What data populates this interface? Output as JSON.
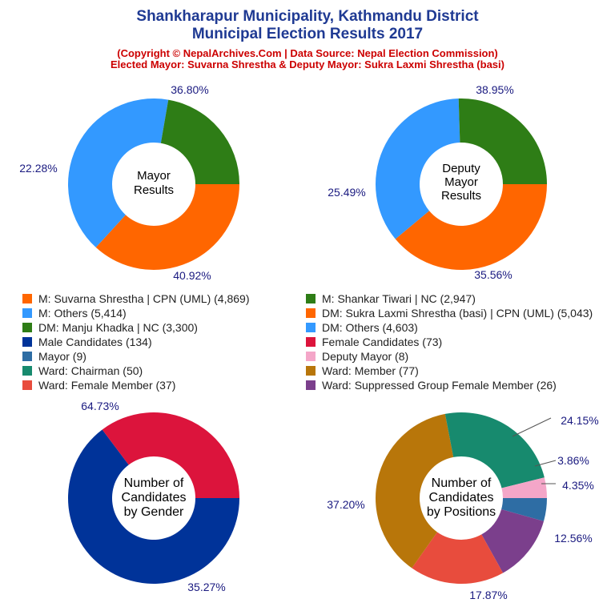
{
  "header": {
    "title_line1": "Shankharapur Municipality, Kathmandu District",
    "title_line2": "Municipal Election Results 2017",
    "subtitle_line1": "(Copyright © NepalArchives.Com | Data Source: Nepal Election Commission)",
    "subtitle_line2": "Elected Mayor: Suvarna Shrestha & Deputy Mayor: Sukra Laxmi Shrestha (basi)"
  },
  "colors": {
    "title": "#1f3a93",
    "subtitle": "#cc0000",
    "orange": "#ff6600",
    "blue": "#3399ff",
    "green": "#2e7d16",
    "navy": "#003399",
    "crimson": "#dc143c",
    "steel": "#2e6da4",
    "pink": "#f4a6c8",
    "teal": "#178a6e",
    "brown": "#b8760a",
    "red": "#e84c3d",
    "purple": "#7b3f8c"
  },
  "chart_data": [
    {
      "type": "pie",
      "center_label": [
        "Mayor",
        "Results"
      ],
      "slices": [
        {
          "label": "M: Suvarna Shrestha | CPN (UML)",
          "value": 4869,
          "percent": "36.80%",
          "color": "#ff6600"
        },
        {
          "label": "M: Others",
          "value": 5414,
          "percent": "40.92%",
          "color": "#3399ff"
        },
        {
          "label": "M: Shankar Tiwari | NC",
          "value": 2947,
          "percent": "22.28%",
          "color": "#2e7d16"
        }
      ]
    },
    {
      "type": "pie",
      "center_label": [
        "Deputy",
        "Mayor",
        "Results"
      ],
      "slices": [
        {
          "label": "DM: Sukra Laxmi Shrestha (basi) | CPN (UML)",
          "value": 5043,
          "percent": "38.95%",
          "color": "#ff6600"
        },
        {
          "label": "DM: Others",
          "value": 4603,
          "percent": "35.56%",
          "color": "#3399ff"
        },
        {
          "label": "DM: Manju Khadka | NC",
          "value": 3300,
          "percent": "25.49%",
          "color": "#2e7d16"
        }
      ]
    },
    {
      "type": "pie",
      "center_label": [
        "Number of",
        "Candidates",
        "by Gender"
      ],
      "slices": [
        {
          "label": "Male Candidates",
          "value": 134,
          "percent": "64.73%",
          "color": "#003399"
        },
        {
          "label": "Female Candidates",
          "value": 73,
          "percent": "35.27%",
          "color": "#dc143c"
        }
      ]
    },
    {
      "type": "pie",
      "center_label": [
        "Number of",
        "Candidates",
        "by Positions"
      ],
      "slices": [
        {
          "label": "Mayor",
          "value": 9,
          "percent": "4.35%",
          "color": "#2e6da4"
        },
        {
          "label": "Ward: Suppressed Group Female Member",
          "value": 26,
          "percent": "12.56%",
          "color": "#7b3f8c"
        },
        {
          "label": "Ward: Female Member",
          "value": 37,
          "percent": "17.87%",
          "color": "#e84c3d"
        },
        {
          "label": "Ward: Member",
          "value": 77,
          "percent": "37.20%",
          "color": "#b8760a"
        },
        {
          "label": "Ward: Chairman",
          "value": 50,
          "percent": "24.15%",
          "color": "#178a6e"
        },
        {
          "label": "Deputy Mayor",
          "value": 8,
          "percent": "3.86%",
          "color": "#f4a6c8"
        }
      ]
    }
  ],
  "legend": [
    {
      "text": "M: Suvarna Shrestha | CPN (UML) (4,869)",
      "color": "#ff6600"
    },
    {
      "text": "M: Shankar Tiwari | NC (2,947)",
      "color": "#2e7d16"
    },
    {
      "text": "M: Others (5,414)",
      "color": "#3399ff"
    },
    {
      "text": "DM: Sukra Laxmi Shrestha (basi) | CPN (UML) (5,043)",
      "color": "#ff6600"
    },
    {
      "text": "DM: Manju Khadka | NC (3,300)",
      "color": "#2e7d16"
    },
    {
      "text": "DM: Others (4,603)",
      "color": "#3399ff"
    },
    {
      "text": "Male Candidates (134)",
      "color": "#003399"
    },
    {
      "text": "Female Candidates (73)",
      "color": "#dc143c"
    },
    {
      "text": "Mayor (9)",
      "color": "#2e6da4"
    },
    {
      "text": "Deputy Mayor (8)",
      "color": "#f4a6c8"
    },
    {
      "text": "Ward: Chairman (50)",
      "color": "#178a6e"
    },
    {
      "text": "Ward: Member (77)",
      "color": "#b8760a"
    },
    {
      "text": "Ward: Female Member (37)",
      "color": "#e84c3d"
    },
    {
      "text": "Ward: Suppressed Group Female Member (26)",
      "color": "#7b3f8c"
    }
  ]
}
